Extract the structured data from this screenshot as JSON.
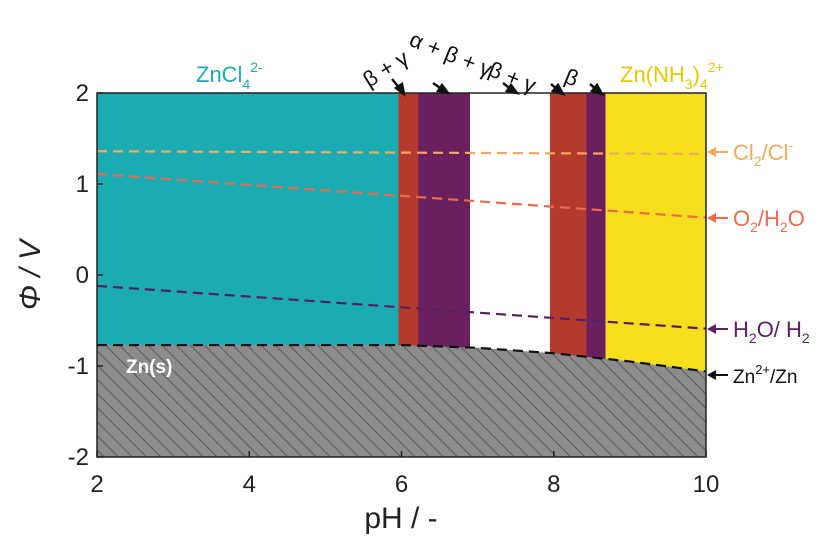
{
  "chart_data": {
    "type": "area",
    "title": "",
    "xlabel": "pH  /  -",
    "ylabel": "Φ  /  V",
    "xlim": [
      2,
      10
    ],
    "ylim": [
      -2,
      2
    ],
    "x_ticks": [
      "2",
      "4",
      "6",
      "8",
      "10"
    ],
    "y_ticks": [
      "2",
      "1",
      "0",
      "-1",
      "-2"
    ],
    "grid": false,
    "colors": {
      "ZnCl4": "#1aabb3",
      "beta_gamma": "#b53a2e",
      "alpha_beta_gamma": "#6a1f5e",
      "beta_plus_gamma": "#b53a2e",
      "beta": "#6a1f5e",
      "ZnNH3": "#f5de1b",
      "cl2": "#f5a95a",
      "o2": "#ee6a4a",
      "h2o": "#5a1f62",
      "zn": "#111111",
      "zn_fill": "#8c8c8c"
    },
    "regions": [
      {
        "name": "ZnCl4",
        "x_start": 2.0,
        "x_end": 5.96
      },
      {
        "name": "β + γ",
        "x_start": 5.96,
        "x_end": 6.22
      },
      {
        "name": "α + β + γ",
        "x_start": 6.22,
        "x_end": 6.9
      },
      {
        "name": "white",
        "x_start": 6.9,
        "x_end": 7.95
      },
      {
        "name": "β + γ",
        "x_start": 7.95,
        "x_end": 8.43
      },
      {
        "name": "β",
        "x_start": 8.43,
        "x_end": 8.68
      },
      {
        "name": "Zn(NH3)4 2+",
        "x_start": 8.68,
        "x_end": 10.0
      }
    ],
    "zn_boundary": [
      {
        "x": 2.0,
        "y": -0.77
      },
      {
        "x": 6.0,
        "y": -0.77
      },
      {
        "x": 7.0,
        "y": -0.8
      },
      {
        "x": 8.0,
        "y": -0.86
      },
      {
        "x": 9.0,
        "y": -0.95
      },
      {
        "x": 10.0,
        "y": -1.06
      }
    ],
    "series": [
      {
        "name": "Cl2/Cl-",
        "x": [
          2,
          10
        ],
        "y": [
          1.36,
          1.33
        ]
      },
      {
        "name": "O2/H2O",
        "x": [
          2,
          10
        ],
        "y": [
          1.11,
          0.63
        ]
      },
      {
        "name": "H2O/ H2",
        "x": [
          2,
          10
        ],
        "y": [
          -0.12,
          -0.59
        ]
      },
      {
        "name": "Zn2+/Zn",
        "x": [
          2,
          6,
          7,
          8,
          9,
          10
        ],
        "y": [
          -0.77,
          -0.77,
          -0.8,
          -0.86,
          -0.95,
          -1.06
        ]
      }
    ],
    "annotations": {
      "zncl4": {
        "base": "ZnCl",
        "sub": "4",
        "sup": "2-"
      },
      "znnh3": {
        "pre": "Zn(NH",
        "sub1": "3",
        "mid": ")",
        "sub2": "4",
        "sup": "2+"
      },
      "zns": "Zn(s)",
      "cl": {
        "a": "Cl",
        "sub": "2",
        "b": "/Cl",
        "sup": "-"
      },
      "o2": {
        "a": "O",
        "sub1": "2",
        "b": "/H",
        "sub2": "2",
        "c": "O"
      },
      "h2": {
        "a": "H",
        "sub1": "2",
        "b": "O/ H",
        "sub2": "2"
      },
      "zn": {
        "a": "Zn",
        "sup": "2+",
        "b": "/Zn"
      },
      "phase1": "β + γ",
      "phase2": "α + β + γ",
      "phase3": "β + γ",
      "phase4": "β"
    }
  }
}
